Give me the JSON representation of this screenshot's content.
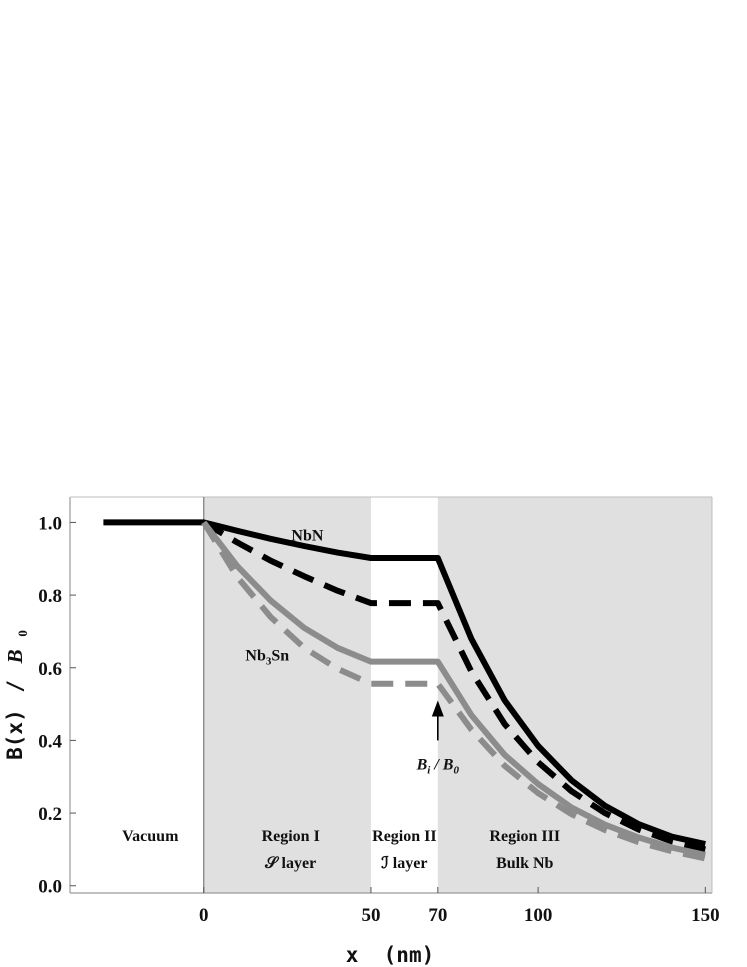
{
  "chart_data": {
    "type": "line",
    "title": "",
    "xlabel": "x  (nm)",
    "ylabel_main": "B(x)",
    "ylabel_slash": "/",
    "ylabel_sym": "B",
    "ylabel_sub": "0",
    "xlim": [
      -40,
      152
    ],
    "ylim": [
      -0.02,
      1.07
    ],
    "x_ticks": [
      0,
      50,
      70,
      100,
      150
    ],
    "x_tick_labels": [
      "0",
      "50",
      "70",
      "100",
      "150"
    ],
    "y_ticks": [
      0.0,
      0.2,
      0.4,
      0.6,
      0.8,
      1.0
    ],
    "y_tick_labels": [
      "0.0",
      "0.2",
      "0.4",
      "0.6",
      "0.8",
      "1.0"
    ],
    "grid": false,
    "shaded_regions": [
      {
        "from": 0,
        "to": 50,
        "color": "#e0e0e0"
      },
      {
        "from": 70,
        "to": 152,
        "color": "#e0e0e0"
      }
    ],
    "region_labels": [
      {
        "x": -16,
        "line1": "Vacuum",
        "line2": ""
      },
      {
        "x": 26,
        "line1": "Region I",
        "line2": "𝒮 layer"
      },
      {
        "x": 60,
        "line1": "Region II",
        "line2": "ℐ layer"
      },
      {
        "x": 96,
        "line1": "Region III",
        "line2": "Bulk Nb"
      }
    ],
    "series": [
      {
        "style": "solid",
        "color": "#000000",
        "x": [
          -30,
          0,
          10,
          20,
          30,
          40,
          50,
          60,
          70,
          80,
          90,
          100,
          110,
          120,
          130,
          140,
          150
        ],
        "y": [
          1.0,
          1.0,
          0.977,
          0.955,
          0.935,
          0.917,
          0.902,
          0.902,
          0.902,
          0.68,
          0.51,
          0.385,
          0.29,
          0.22,
          0.17,
          0.135,
          0.115
        ]
      },
      {
        "style": "dashed",
        "color": "#000000",
        "x": [
          0,
          10,
          20,
          30,
          40,
          50,
          60,
          70,
          80,
          90,
          100,
          110,
          120,
          130,
          140,
          150
        ],
        "y": [
          1.0,
          0.945,
          0.895,
          0.852,
          0.812,
          0.778,
          0.778,
          0.778,
          0.59,
          0.445,
          0.34,
          0.26,
          0.2,
          0.155,
          0.122,
          0.1
        ]
      },
      {
        "style": "solid",
        "color": "#8c8c8c",
        "x": [
          0,
          10,
          20,
          30,
          40,
          50,
          60,
          70,
          80,
          90,
          100,
          110,
          120,
          130,
          140,
          150
        ],
        "y": [
          1.0,
          0.88,
          0.785,
          0.71,
          0.655,
          0.617,
          0.617,
          0.617,
          0.47,
          0.36,
          0.28,
          0.215,
          0.168,
          0.133,
          0.105,
          0.085
        ]
      },
      {
        "style": "dashed",
        "color": "#8c8c8c",
        "x": [
          0,
          10,
          20,
          30,
          40,
          50,
          60,
          70,
          80,
          90,
          100,
          110,
          120,
          130,
          140,
          150
        ],
        "y": [
          1.0,
          0.85,
          0.74,
          0.655,
          0.597,
          0.556,
          0.556,
          0.556,
          0.43,
          0.33,
          0.255,
          0.197,
          0.153,
          0.12,
          0.095,
          0.075
        ]
      }
    ],
    "series_labels": [
      {
        "text": "NbN",
        "x": 31,
        "y": 0.95
      },
      {
        "text": "Nb",
        "sub": "3",
        "text2": "Sn",
        "x": 19,
        "y": 0.62
      }
    ],
    "annotation": {
      "text_pre": "B",
      "sub_a": "i",
      "text_mid": " / B",
      "sub_b": "0",
      "arrow_x": 70,
      "arrow_from_y": 0.4,
      "arrow_to_y": 0.51,
      "label_y": 0.32
    }
  }
}
